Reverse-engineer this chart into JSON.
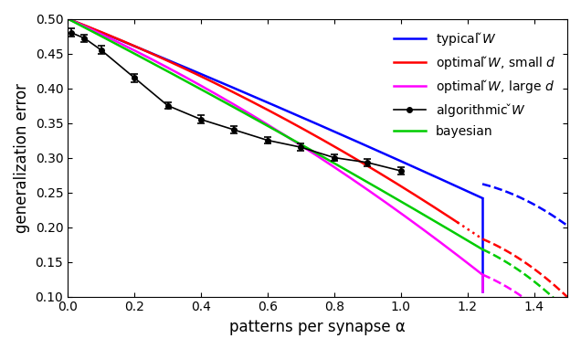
{
  "title": "",
  "xlabel": "patterns per synapse α",
  "ylabel": "generalization error",
  "xlim": [
    0,
    1.5
  ],
  "ylim": [
    0.1,
    0.5
  ],
  "alpha_c": 1.245,
  "colors": {
    "blue": "#0000ff",
    "red": "#ff0000",
    "magenta": "#ff00ff",
    "black": "#000000",
    "green": "#00cc00"
  },
  "legend_labels": [
    "typical $\\check{W}$",
    "optimal $\\check{W}$, small $d$",
    "optimal $\\check{W}$, large $d$",
    "algorithmic $\\check{W}$",
    "bayesian"
  ],
  "errorbar_x": [
    0.01,
    0.05,
    0.1,
    0.2,
    0.3,
    0.4,
    0.5,
    0.6,
    0.7,
    0.8,
    0.9,
    1.0
  ],
  "errorbar_y": [
    0.48,
    0.472,
    0.455,
    0.415,
    0.375,
    0.355,
    0.34,
    0.325,
    0.315,
    0.3,
    0.293,
    0.281
  ],
  "errorbar_err": [
    0.006,
    0.005,
    0.006,
    0.006,
    0.005,
    0.006,
    0.005,
    0.005,
    0.005,
    0.005,
    0.005,
    0.005
  ]
}
